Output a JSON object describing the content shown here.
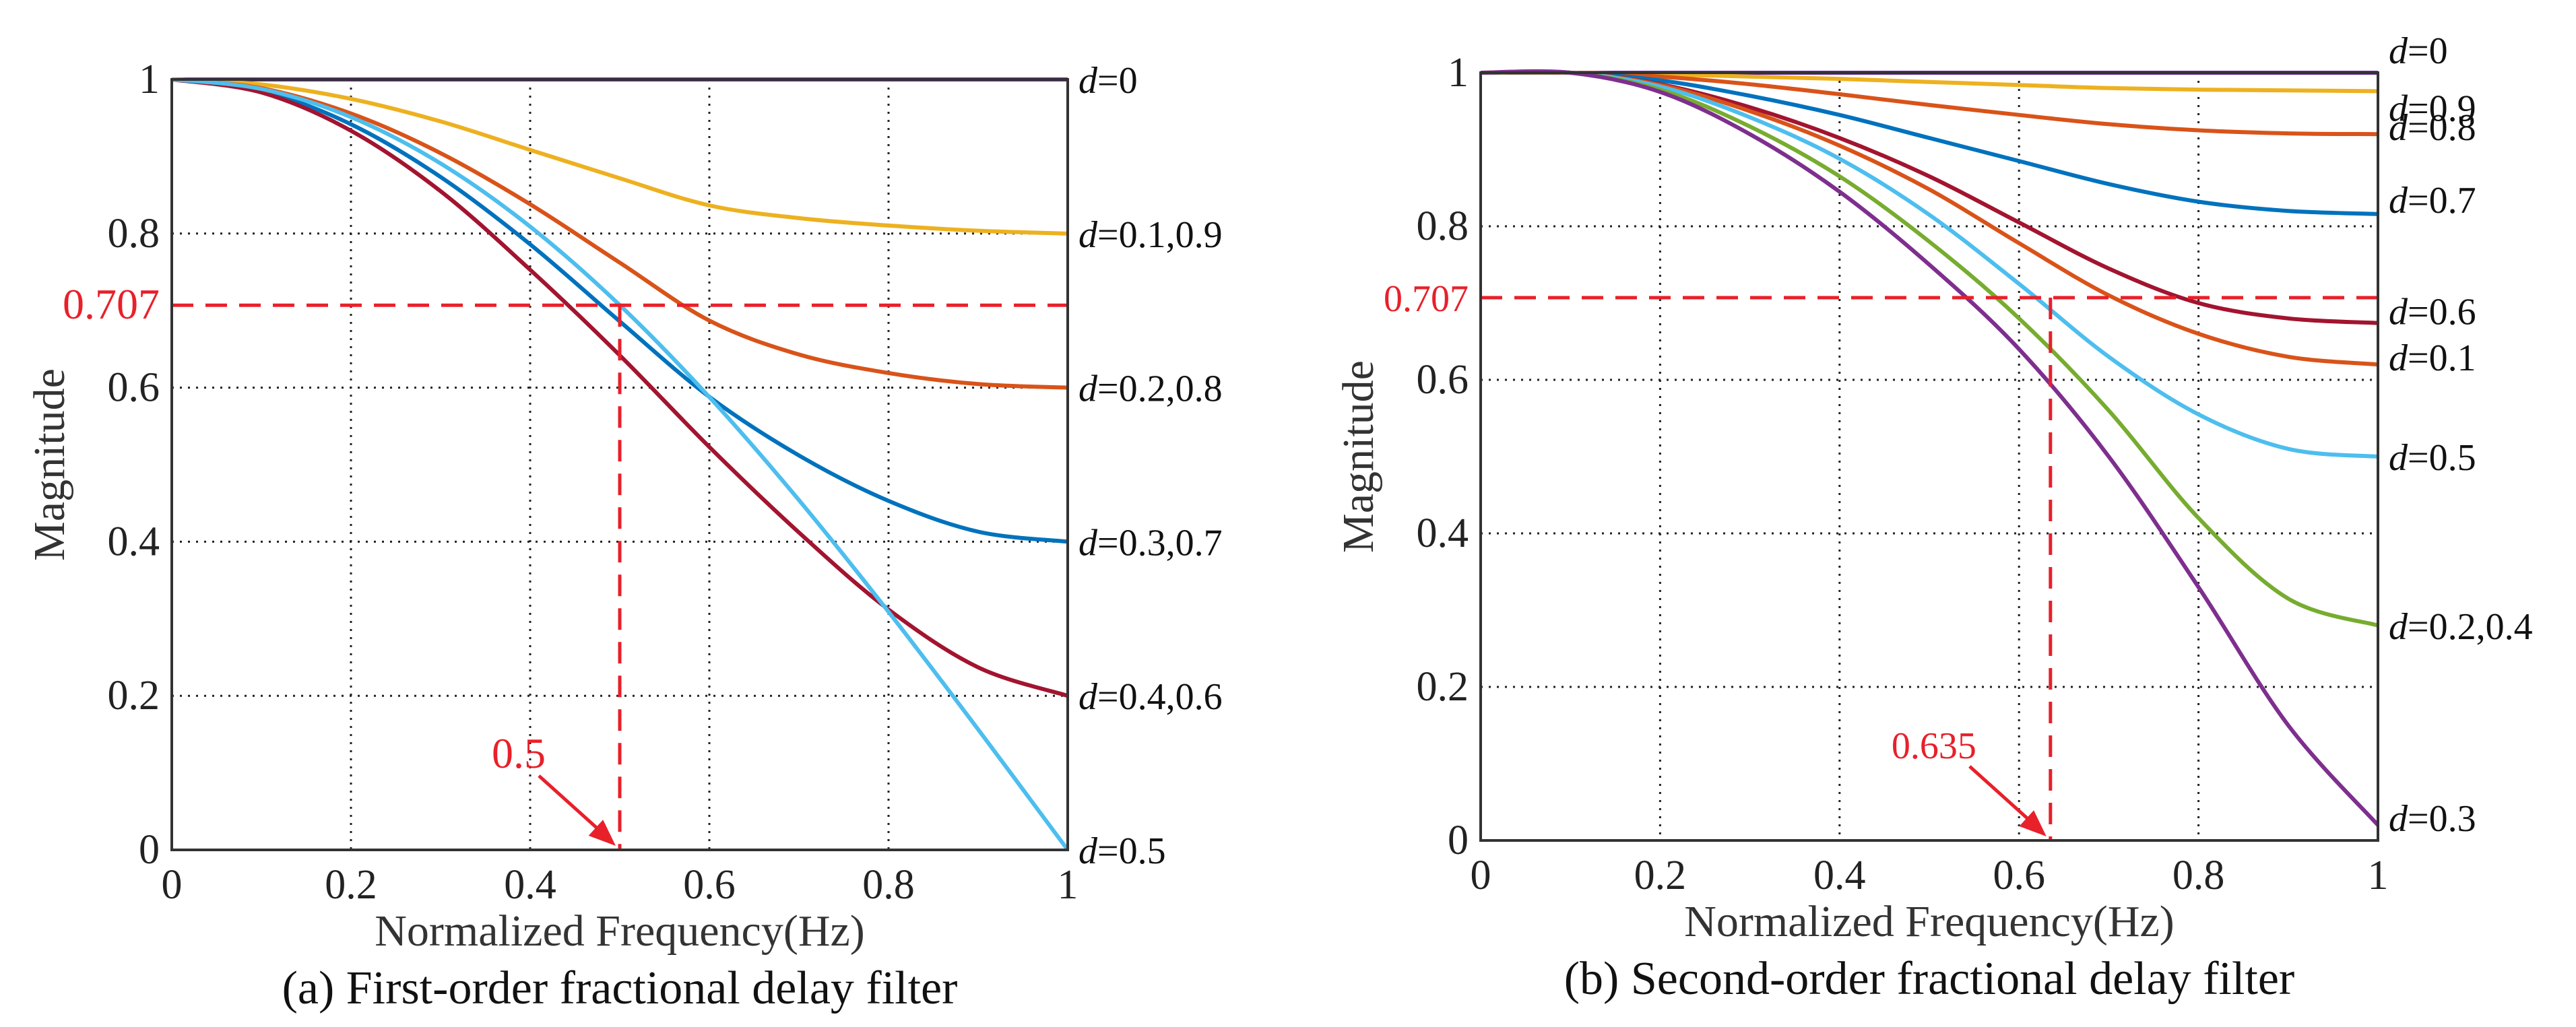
{
  "chart_data": [
    {
      "type": "line",
      "title": "",
      "caption": "(a) First-order fractional delay filter",
      "xlabel": "Normalized Frequency(Hz)",
      "ylabel": "Magnitude",
      "xlim": [
        0,
        1
      ],
      "ylim": [
        0,
        1
      ],
      "grid": true,
      "xticks": [
        "0",
        "0.2",
        "0.4",
        "0.6",
        "0.8",
        "1"
      ],
      "yticks": [
        "0",
        "0.2",
        "0.4",
        "0.6",
        "0.8",
        "1"
      ],
      "x": [
        0,
        0.1,
        0.2,
        0.3,
        0.4,
        0.5,
        0.6,
        0.7,
        0.8,
        0.9,
        1.0
      ],
      "series": [
        {
          "name": "d=0",
          "color": "#7030a0",
          "values": [
            1,
            1,
            1,
            1,
            1,
            1,
            1,
            1,
            1,
            1,
            1
          ]
        },
        {
          "name": "d=0.1,0.9",
          "color": "#edb120",
          "values": [
            1,
            0.9935,
            0.9748,
            0.9455,
            0.9086,
            0.8718,
            0.8365,
            0.82,
            0.8104,
            0.8037,
            0.8
          ]
        },
        {
          "name": "d=0.2,0.8",
          "color": "#d95319",
          "values": [
            1,
            0.9887,
            0.9558,
            0.9044,
            0.838,
            0.7622,
            0.687,
            0.643,
            0.619,
            0.6046,
            0.6
          ]
        },
        {
          "name": "d=0.3,0.7",
          "color": "#0072bd",
          "values": [
            1,
            0.9852,
            0.9419,
            0.8735,
            0.786,
            0.686,
            0.588,
            0.512,
            0.453,
            0.413,
            0.4
          ]
        },
        {
          "name": "d=0.4,0.6",
          "color": "#a2142f",
          "values": [
            1,
            0.9831,
            0.9335,
            0.855,
            0.753,
            0.642,
            0.523,
            0.412,
            0.312,
            0.237,
            0.2
          ]
        },
        {
          "name": "d=0.5",
          "color": "#4dbeee",
          "values": [
            1,
            0.9877,
            0.9511,
            0.891,
            0.809,
            0.7071,
            0.5878,
            0.454,
            0.309,
            0.1564,
            0
          ]
        }
      ],
      "end_labels": [
        "d=0",
        "d=0.1,0.9",
        "d=0.2,0.8",
        "d=0.3,0.7",
        "d=0.4,0.6",
        "d=0.5"
      ],
      "annotations": {
        "y_ref": 0.707,
        "y_ref_label": "0.707",
        "x_ref": 0.5,
        "x_ref_label": "0.5",
        "color": "#e8202a"
      }
    },
    {
      "type": "line",
      "title": "",
      "caption": "(b) Second-order fractional delay filter",
      "xlabel": "Normalized Frequency(Hz)",
      "ylabel": "Magnitude",
      "xlim": [
        0,
        1
      ],
      "ylim": [
        0,
        1
      ],
      "grid": true,
      "xticks": [
        "0",
        "0.2",
        "0.4",
        "0.6",
        "0.8",
        "1"
      ],
      "yticks": [
        "0",
        "0.2",
        "0.4",
        "0.6",
        "0.8",
        "1"
      ],
      "x": [
        0,
        0.1,
        0.2,
        0.3,
        0.4,
        0.5,
        0.6,
        0.7,
        0.8,
        0.9,
        1.0
      ],
      "series": [
        {
          "name": "d=0",
          "color": "#7030a0",
          "values": [
            1,
            1,
            1,
            1,
            1,
            1,
            1,
            1,
            1,
            1,
            1
          ]
        },
        {
          "name": "d=0.9",
          "color": "#edb120",
          "values": [
            1,
            1,
            0.998,
            0.995,
            0.992,
            0.988,
            0.984,
            0.98,
            0.978,
            0.977,
            0.976
          ]
        },
        {
          "name": "d=0.8",
          "color": "#d95319",
          "values": [
            1,
            1,
            0.995,
            0.985,
            0.972,
            0.958,
            0.945,
            0.933,
            0.925,
            0.921,
            0.92
          ]
        },
        {
          "name": "d=0.7",
          "color": "#0072bd",
          "values": [
            1,
            1,
            0.99,
            0.97,
            0.945,
            0.915,
            0.885,
            0.855,
            0.832,
            0.82,
            0.816
          ]
        },
        {
          "name": "d=0.6",
          "color": "#a2142f",
          "values": [
            1,
            1,
            0.985,
            0.955,
            0.915,
            0.865,
            0.805,
            0.745,
            0.7,
            0.68,
            0.674
          ]
        },
        {
          "name": "d=0.1",
          "color": "#d95319",
          "values": [
            1,
            1,
            0.984,
            0.95,
            0.905,
            0.848,
            0.778,
            0.71,
            0.66,
            0.63,
            0.62
          ]
        },
        {
          "name": "d=0.5",
          "color": "#4dbeee",
          "values": [
            1,
            1,
            0.982,
            0.942,
            0.888,
            0.815,
            0.725,
            0.63,
            0.555,
            0.51,
            0.5
          ]
        },
        {
          "name": "d=0.2,0.4",
          "color": "#77ac30",
          "values": [
            1,
            1,
            0.978,
            0.93,
            0.865,
            0.78,
            0.68,
            0.56,
            0.42,
            0.315,
            0.28
          ]
        },
        {
          "name": "d=0.3",
          "color": "#7e2f8e",
          "values": [
            1,
            1,
            0.975,
            0.92,
            0.845,
            0.75,
            0.64,
            0.5,
            0.33,
            0.15,
            0.02
          ]
        }
      ],
      "end_labels": [
        "d=0",
        "d=0.9",
        "d=0.8",
        "d=0.7",
        "d=0.6",
        "d=0.1",
        "d=0.5",
        "d=0.2,0.4",
        "d=0.3"
      ],
      "annotations": {
        "y_ref": 0.707,
        "y_ref_label": "0.707",
        "x_ref": 0.635,
        "x_ref_label": "0.635",
        "color": "#e8202a"
      }
    }
  ]
}
